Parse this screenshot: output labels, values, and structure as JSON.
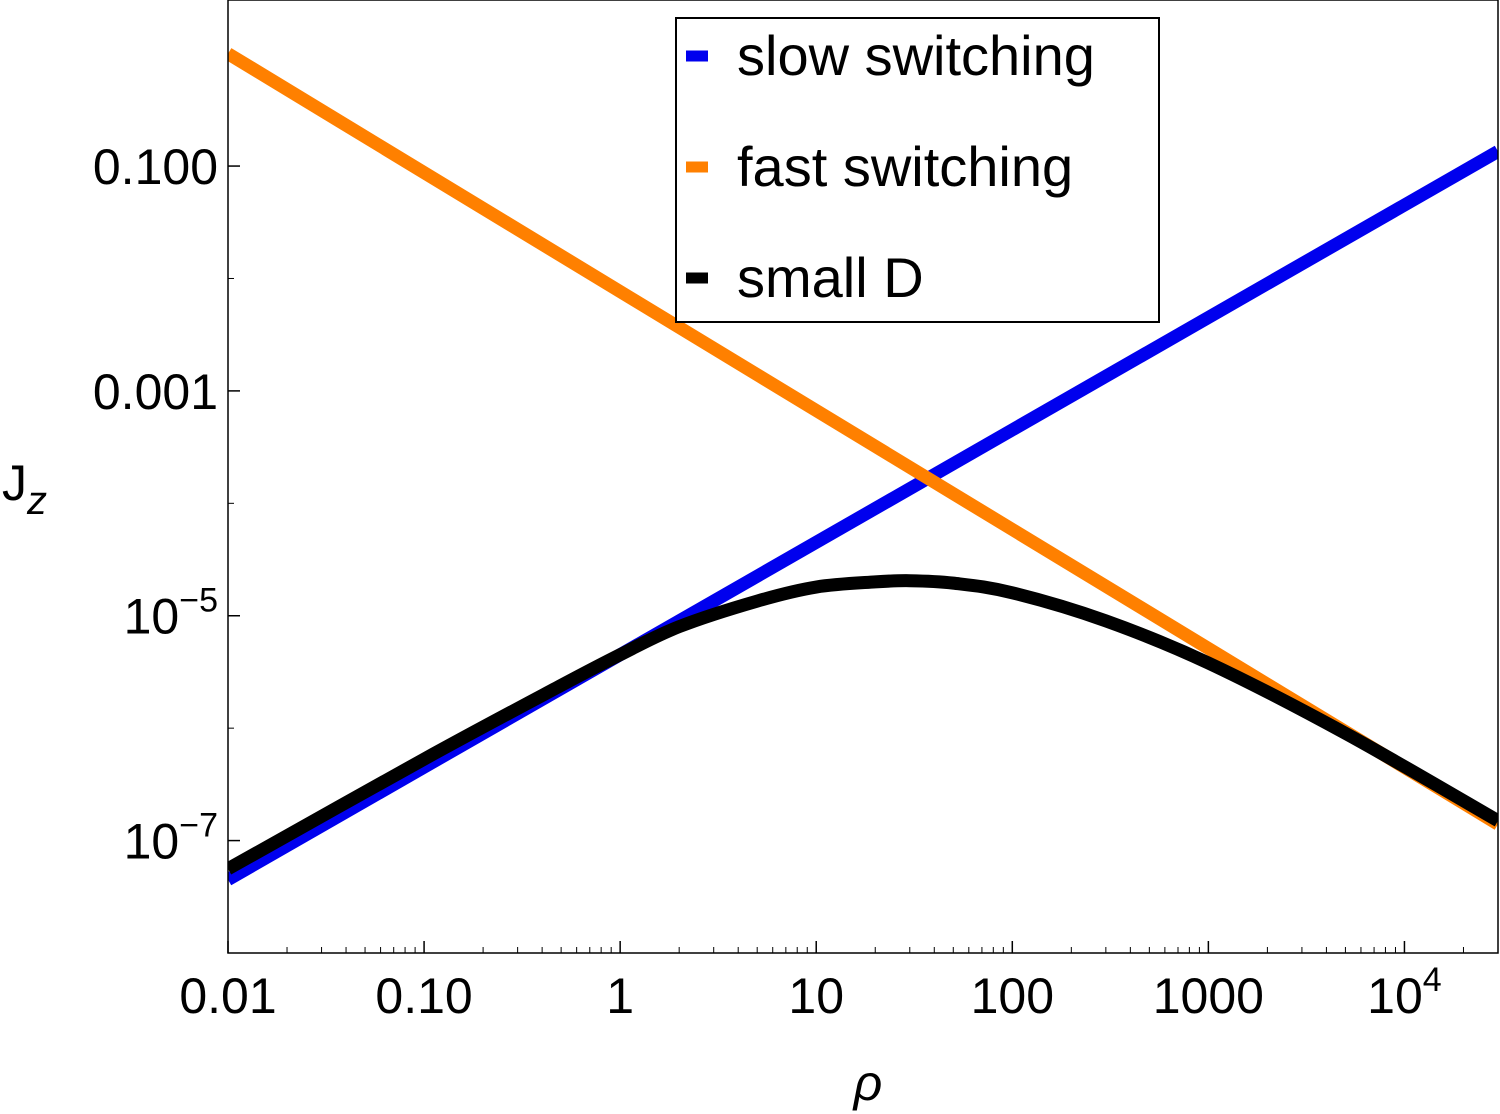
{
  "chart_data": {
    "type": "line",
    "title": "",
    "xlabel": "ρ",
    "ylabel": "J",
    "ylabel_subscript": "z",
    "xscale": "log",
    "yscale": "log",
    "xlim": [
      0.01,
      30000
    ],
    "ylim": [
      1e-08,
      3
    ],
    "x_ticks": [
      {
        "value": 0.01,
        "label": "0.01"
      },
      {
        "value": 0.1,
        "label": "0.10"
      },
      {
        "value": 1,
        "label": "1"
      },
      {
        "value": 10,
        "label": "10"
      },
      {
        "value": 100,
        "label": "100"
      },
      {
        "value": 1000,
        "label": "1000"
      },
      {
        "value": 10000,
        "base": "10",
        "exp": "4"
      }
    ],
    "y_ticks": [
      {
        "value": 0.1,
        "label": "0.100"
      },
      {
        "value": 0.001,
        "label": "0.001"
      },
      {
        "value": 1e-05,
        "base": "10",
        "exp": "−5"
      },
      {
        "value": 1e-07,
        "base": "10",
        "exp": "−7"
      }
    ],
    "legend_position": "top-center",
    "series": [
      {
        "name": "slow switching",
        "color": "#0000ee",
        "x": [
          0.01,
          30000
        ],
        "y": [
          4.5e-08,
          0.135
        ]
      },
      {
        "name": "fast switching",
        "color": "#ff8000",
        "x": [
          0.01,
          30000
        ],
        "y": [
          1.0,
          1.4e-07
        ]
      },
      {
        "name": "small D",
        "color": "#000000",
        "x": [
          0.01,
          0.1,
          0.5,
          1,
          2,
          5,
          10,
          20,
          30,
          50,
          100,
          300,
          1000,
          5000,
          30000
        ],
        "y": [
          5.6e-08,
          5.3e-07,
          2.4e-06,
          4.5e-06,
          8e-06,
          1.35e-05,
          1.8e-05,
          2e-05,
          2.05e-05,
          1.95e-05,
          1.6e-05,
          9e-06,
          3.8e-06,
          9e-07,
          1.5e-07
        ]
      }
    ]
  }
}
